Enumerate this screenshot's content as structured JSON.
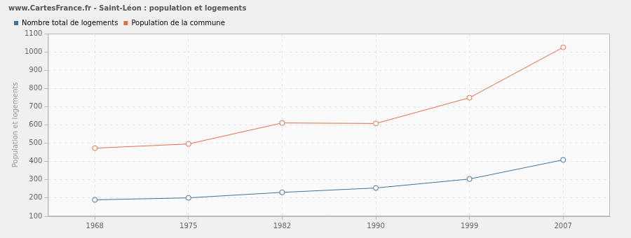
{
  "chart_data": {
    "type": "line",
    "title": "www.CartesFrance.fr - Saint-Léon : population et logements",
    "y_label": "Population et logements",
    "categories": [
      "1968",
      "1975",
      "1982",
      "1990",
      "1999",
      "2007"
    ],
    "series": [
      {
        "name": "Nombre total de logements",
        "color": "#43719c",
        "values": [
          190,
          201,
          231,
          255,
          304,
          409
        ]
      },
      {
        "name": "Population de la commune",
        "color": "#e0714b",
        "values": [
          473,
          496,
          611,
          608,
          749,
          1025
        ]
      }
    ],
    "ylim": [
      100,
      1100
    ],
    "yticks": [
      100,
      200,
      300,
      400,
      500,
      600,
      700,
      800,
      900,
      1000,
      1100
    ],
    "grid": true,
    "legend": "top-left",
    "marker": "circle"
  }
}
